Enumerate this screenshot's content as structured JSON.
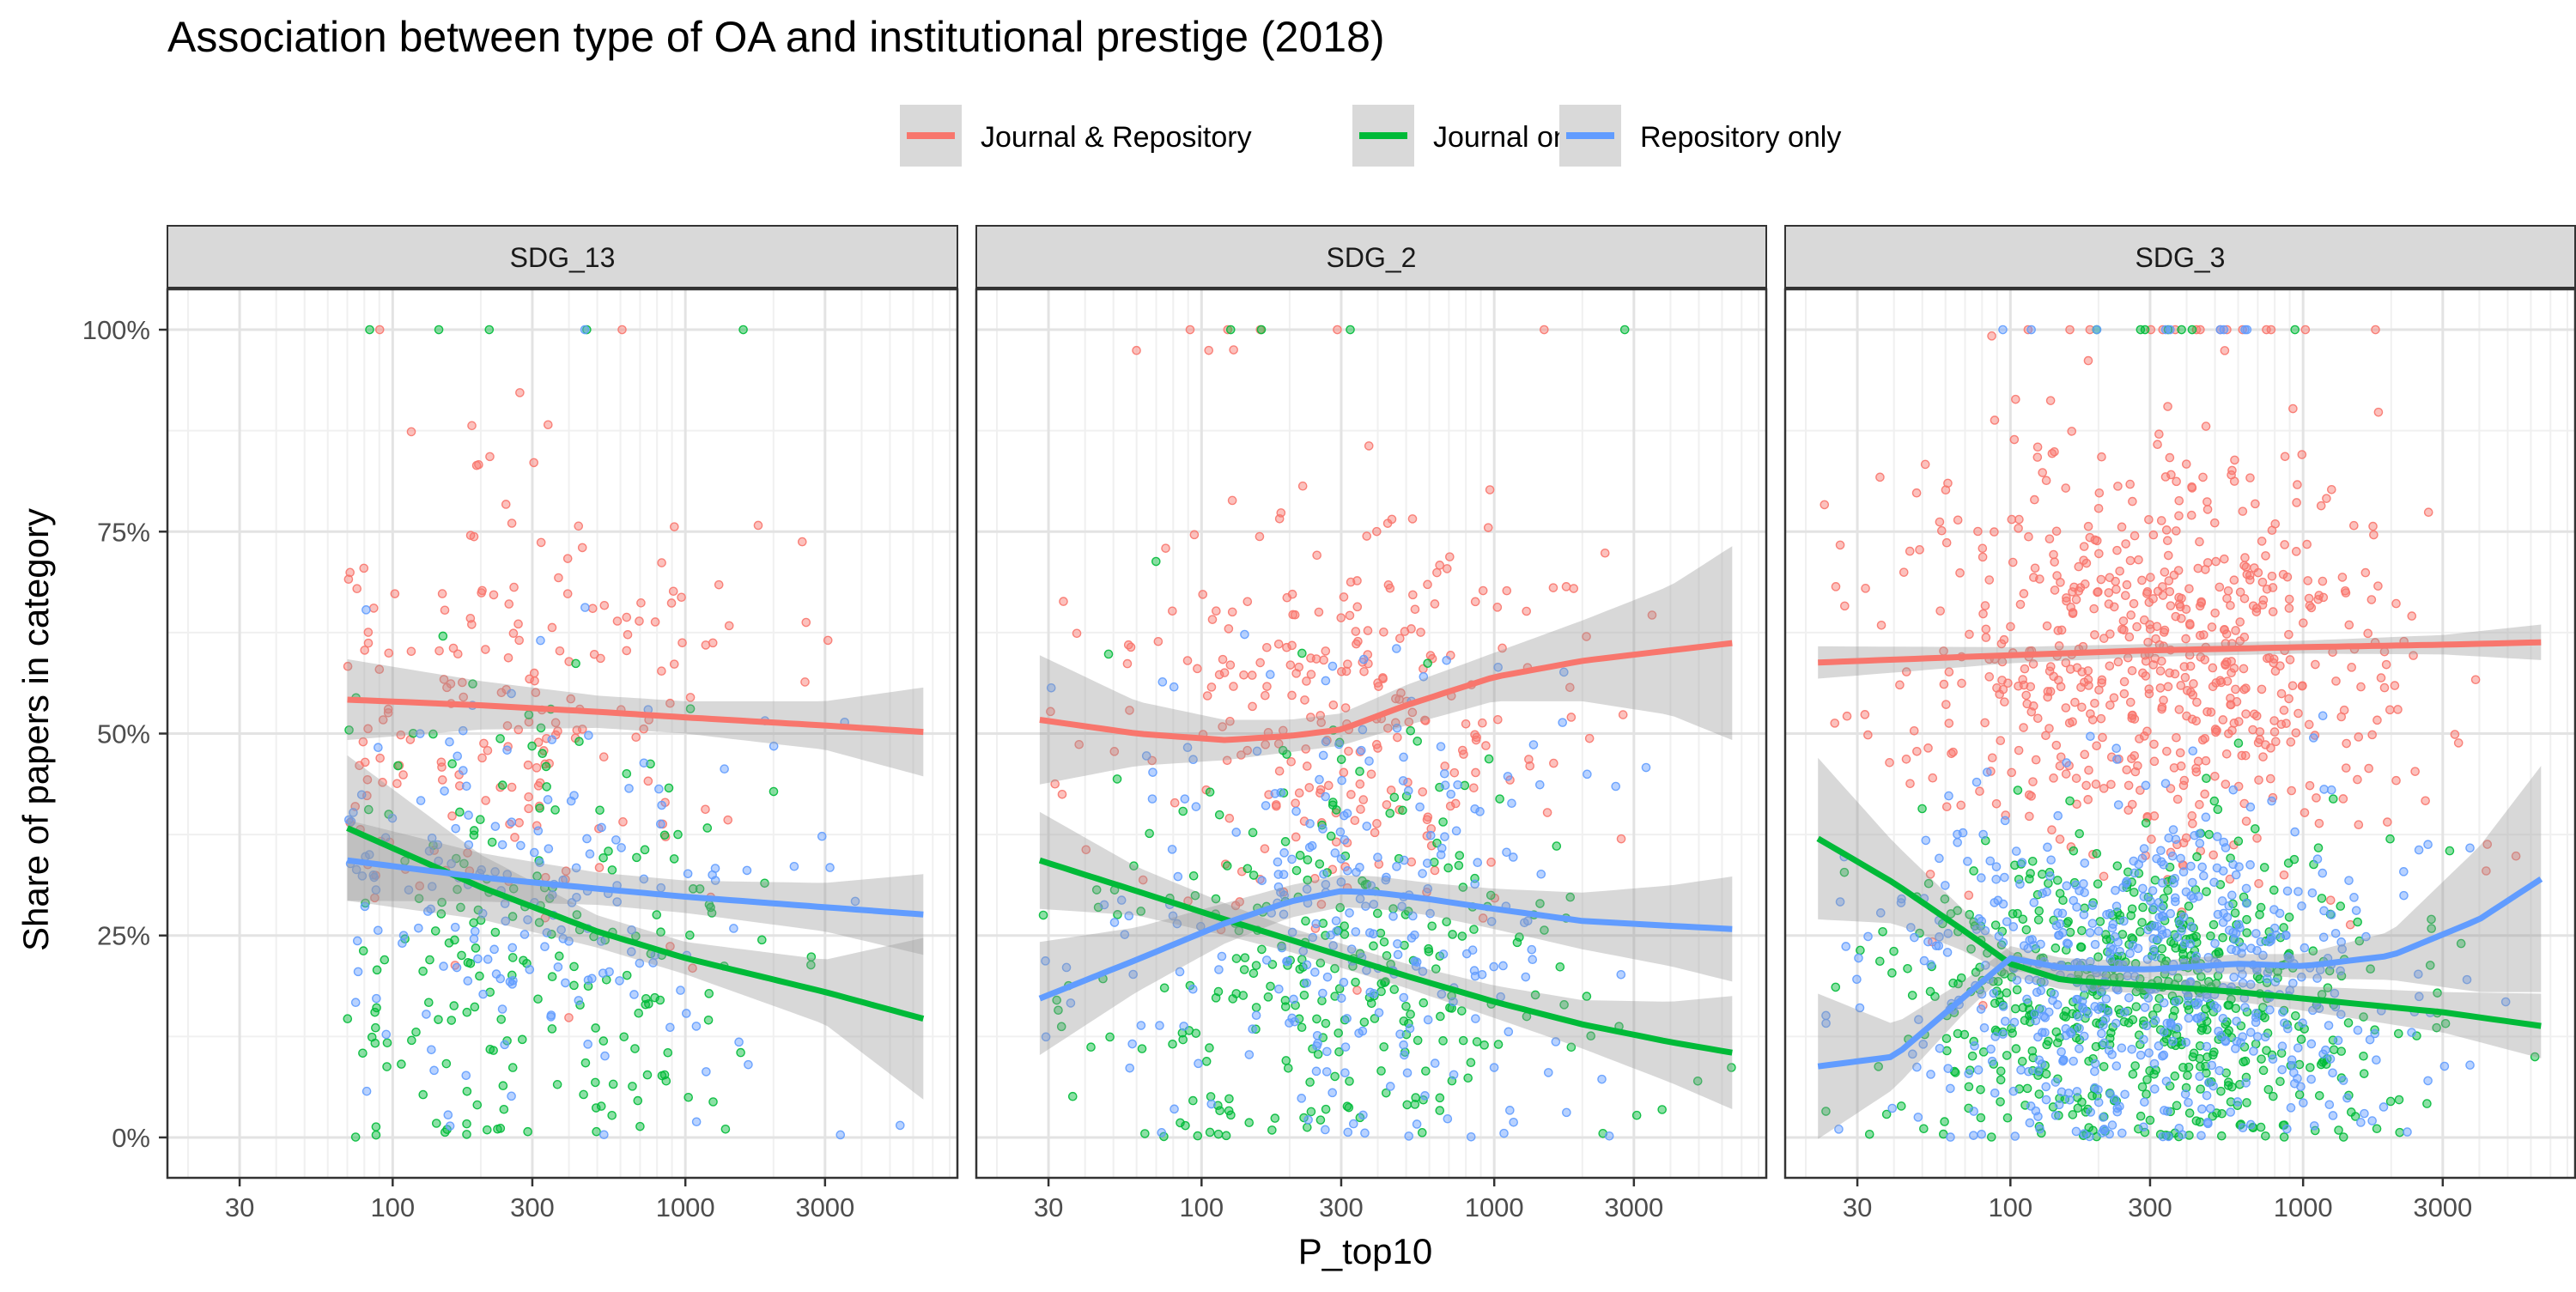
{
  "chart_data": {
    "type": "scatter",
    "title": "Association between type of OA and institutional prestige (2018)",
    "xlabel": "P_top10",
    "ylabel": "Share of papers in category",
    "x_scale": "log10",
    "x_ticks": [
      30,
      100,
      300,
      1000,
      3000
    ],
    "x_tick_labels": [
      "30",
      "100",
      "300",
      "1000",
      "3000"
    ],
    "y_ticks": [
      0,
      0.25,
      0.5,
      0.75,
      1.0
    ],
    "y_tick_labels": [
      "0%",
      "25%",
      "50%",
      "75%",
      "100%"
    ],
    "xlim": [
      17,
      8500
    ],
    "ylim": [
      -0.05,
      1.05
    ],
    "grid": true,
    "legend_position": "top",
    "series": [
      {
        "name": "Journal & Repository",
        "color": "#F8766D"
      },
      {
        "name": "Journal only",
        "color": "#00BA38"
      },
      {
        "name": "Repository only",
        "color": "#619CFF"
      }
    ],
    "panels": [
      {
        "label": "SDG_13",
        "points": {
          "Journal & Repository": {
            "n": 190,
            "x_range": [
              70,
              6500
            ],
            "center": 0.54,
            "spread": 0.14
          },
          "Journal only": {
            "n": 200,
            "x_range": [
              70,
              6500
            ],
            "center": 0.22,
            "spread": 0.16
          },
          "Repository only": {
            "n": 180,
            "x_range": [
              70,
              6500
            ],
            "center": 0.3,
            "spread": 0.13
          }
        },
        "trends": [
          {
            "series": "Journal & Repository",
            "x": [
              70,
              200,
              500,
              1000,
              3000,
              6500
            ],
            "y": [
              0.542,
              0.535,
              0.527,
              0.52,
              0.51,
              0.502
            ],
            "ci": [
              0.05,
              0.03,
              0.02,
              0.02,
              0.03,
              0.055
            ]
          },
          {
            "series": "Journal only",
            "x": [
              70,
              200,
              500,
              1000,
              3000,
              6500
            ],
            "y": [
              0.383,
              0.31,
              0.255,
              0.222,
              0.18,
              0.147
            ],
            "ci": [
              0.09,
              0.04,
              0.02,
              0.02,
              0.04,
              0.1
            ]
          },
          {
            "series": "Repository only",
            "x": [
              70,
              200,
              500,
              1000,
              3000,
              6500
            ],
            "y": [
              0.343,
              0.322,
              0.308,
              0.298,
              0.285,
              0.276
            ],
            "ci": [
              0.05,
              0.03,
              0.02,
              0.02,
              0.03,
              0.05
            ]
          }
        ]
      },
      {
        "label": "SDG_2",
        "points": {
          "Journal & Repository": {
            "n": 260,
            "x_range": [
              28,
              6500
            ],
            "center": 0.55,
            "spread": 0.15
          },
          "Journal only": {
            "n": 270,
            "x_range": [
              28,
              6500
            ],
            "center": 0.2,
            "spread": 0.15
          },
          "Repository only": {
            "n": 260,
            "x_range": [
              28,
              6500
            ],
            "center": 0.26,
            "spread": 0.15
          }
        },
        "trends": [
          {
            "series": "Journal & Repository",
            "x": [
              28,
              60,
              120,
              200,
              300,
              500,
              1000,
              2000,
              4000,
              6500
            ],
            "y": [
              0.517,
              0.5,
              0.492,
              0.497,
              0.505,
              0.535,
              0.57,
              0.59,
              0.603,
              0.612
            ],
            "ci": [
              0.08,
              0.04,
              0.025,
              0.02,
              0.02,
              0.025,
              0.03,
              0.05,
              0.08,
              0.12
            ]
          },
          {
            "series": "Journal only",
            "x": [
              28,
              60,
              120,
              200,
              300,
              500,
              1000,
              2000,
              4000,
              6500
            ],
            "y": [
              0.343,
              0.305,
              0.27,
              0.245,
              0.225,
              0.2,
              0.168,
              0.14,
              0.118,
              0.105
            ],
            "ci": [
              0.06,
              0.03,
              0.02,
              0.015,
              0.015,
              0.015,
              0.02,
              0.03,
              0.05,
              0.07
            ]
          },
          {
            "series": "Repository only",
            "x": [
              28,
              60,
              120,
              200,
              300,
              400,
              600,
              1000,
              2000,
              4000,
              6500
            ],
            "y": [
              0.172,
              0.22,
              0.265,
              0.292,
              0.305,
              0.303,
              0.295,
              0.283,
              0.268,
              0.262,
              0.258
            ],
            "ci": [
              0.07,
              0.04,
              0.025,
              0.02,
              0.02,
              0.02,
              0.02,
              0.025,
              0.035,
              0.05,
              0.065
            ]
          }
        ]
      },
      {
        "label": "SDG_3",
        "points": {
          "Journal & Repository": {
            "n": 650,
            "x_range": [
              22,
              6500
            ],
            "center": 0.6,
            "spread": 0.13
          },
          "Journal only": {
            "n": 620,
            "x_range": [
              22,
              6500
            ],
            "center": 0.18,
            "spread": 0.1
          },
          "Repository only": {
            "n": 620,
            "x_range": [
              22,
              6500
            ],
            "center": 0.2,
            "spread": 0.11
          }
        },
        "trends": [
          {
            "series": "Journal & Repository",
            "x": [
              22,
              100,
              300,
              1000,
              3000,
              6500
            ],
            "y": [
              0.588,
              0.597,
              0.603,
              0.607,
              0.61,
              0.613
            ],
            "ci": [
              0.02,
              0.01,
              0.008,
              0.008,
              0.012,
              0.022
            ]
          },
          {
            "series": "Journal only",
            "x": [
              22,
              40,
              70,
              100,
              150,
              300,
              600,
              1000,
              3000,
              6500
            ],
            "y": [
              0.37,
              0.315,
              0.255,
              0.215,
              0.195,
              0.188,
              0.18,
              0.172,
              0.155,
              0.138
            ],
            "ci": [
              0.1,
              0.05,
              0.025,
              0.015,
              0.012,
              0.01,
              0.012,
              0.015,
              0.025,
              0.04
            ]
          },
          {
            "series": "Repository only",
            "x": [
              22,
              40,
              70,
              100,
              150,
              300,
              600,
              1000,
              2000,
              4000,
              6500
            ],
            "y": [
              0.088,
              0.1,
              0.175,
              0.222,
              0.21,
              0.208,
              0.215,
              0.212,
              0.225,
              0.27,
              0.32
            ],
            "ci": [
              0.09,
              0.04,
              0.02,
              0.015,
              0.012,
              0.01,
              0.012,
              0.015,
              0.03,
              0.09,
              0.14
            ]
          }
        ]
      }
    ]
  }
}
